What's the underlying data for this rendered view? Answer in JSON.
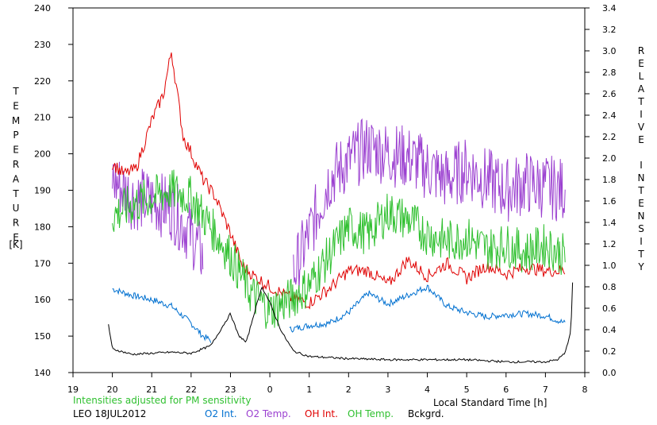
{
  "chart_data": {
    "type": "line",
    "title": "",
    "station_date": "LEO 18JUL2012",
    "note": "Intensities adjusted for PM sensitivity",
    "xlabel": "Local Standard Time [h]",
    "ylabel_left_letters": [
      "T",
      "E",
      "M",
      "P",
      "E",
      "R",
      "A",
      "T",
      "U",
      "R",
      "E"
    ],
    "ylabel_left_unit": "[K]",
    "ylabel_right_letters": [
      "R",
      "E",
      "L",
      "A",
      "T",
      "I",
      "V",
      "E",
      "",
      "I",
      "N",
      "T",
      "E",
      "N",
      "S",
      "I",
      "T",
      "Y"
    ],
    "x_ticks": [
      "19",
      "20",
      "21",
      "22",
      "23",
      "0",
      "1",
      "2",
      "3",
      "4",
      "5",
      "6",
      "7",
      "8"
    ],
    "xlim": [
      19,
      32
    ],
    "ylim_left": [
      140,
      240
    ],
    "y_ticks_left": [
      "140",
      "150",
      "160",
      "170",
      "180",
      "190",
      "200",
      "210",
      "220",
      "230",
      "240"
    ],
    "ylim_right": [
      0,
      3.4
    ],
    "y_ticks_right": [
      "0.0",
      "0.2",
      "0.4",
      "0.6",
      "0.8",
      "1.0",
      "1.2",
      "1.4",
      "1.6",
      "1.8",
      "2.0",
      "2.2",
      "2.4",
      "2.6",
      "2.8",
      "3.0",
      "3.2",
      "3.4"
    ],
    "grid": false,
    "legend_position": "bottom",
    "colors": {
      "o2_int": "#0070d0",
      "o2_temp": "#9b40d0",
      "oh_int": "#e00000",
      "oh_temp": "#30c030",
      "bckgrd": "#000000",
      "note": "#30c030"
    },
    "series": [
      {
        "name": "O2 Int.",
        "axis": "right",
        "key": "o2_int",
        "x": [
          20.0,
          20.5,
          21.0,
          21.5,
          22.0,
          22.3,
          22.5
        ],
        "y": [
          0.78,
          0.72,
          0.68,
          0.62,
          0.46,
          0.34,
          0.3
        ],
        "x2": [
          24.5,
          25.0,
          25.5,
          26.0,
          26.5,
          27.0,
          27.5,
          28.0,
          28.5,
          29.0,
          29.5,
          30.0,
          30.5,
          31.0,
          31.5
        ],
        "y2": [
          0.4,
          0.44,
          0.46,
          0.56,
          0.74,
          0.64,
          0.72,
          0.8,
          0.62,
          0.56,
          0.52,
          0.54,
          0.55,
          0.53,
          0.46
        ]
      },
      {
        "name": "O2 Temp.",
        "axis": "left",
        "key": "o2_temp",
        "x": [
          20.0,
          20.5,
          21.0,
          21.5,
          22.0,
          22.3
        ],
        "y": [
          193,
          188,
          187,
          185,
          178,
          172
        ],
        "x2": [
          24.6,
          25.0,
          25.5,
          26.0,
          26.5,
          27.0,
          27.5,
          28.0,
          28.5,
          29.0,
          29.5,
          30.0,
          30.5,
          31.0,
          31.5
        ],
        "y2": [
          167,
          178,
          193,
          198,
          202,
          200,
          199,
          196,
          193,
          196,
          193,
          190,
          192,
          191,
          190
        ]
      },
      {
        "name": "OH Int.",
        "axis": "right",
        "key": "oh_int",
        "x": [
          20.0,
          20.3,
          20.6,
          21.0,
          21.3,
          21.5,
          21.8,
          22.0,
          22.3,
          22.6,
          23.0,
          23.3,
          23.6,
          24.0,
          24.5,
          25.0,
          25.5,
          26.0,
          26.5,
          27.0,
          27.5,
          28.0,
          28.5,
          29.0,
          29.5,
          30.0,
          30.5,
          31.0,
          31.5
        ],
        "y": [
          1.95,
          1.85,
          1.9,
          2.35,
          2.6,
          3.0,
          2.2,
          2.05,
          1.8,
          1.65,
          1.3,
          1.0,
          0.9,
          0.8,
          0.7,
          0.65,
          0.78,
          0.95,
          0.95,
          0.82,
          1.05,
          0.9,
          1.02,
          0.88,
          1.0,
          0.92,
          0.98,
          0.95,
          0.95
        ]
      },
      {
        "name": "OH Temp.",
        "axis": "left",
        "key": "oh_temp",
        "x": [
          20.0,
          20.5,
          21.0,
          21.5,
          22.0,
          22.5,
          23.0,
          23.5,
          24.0,
          24.5,
          25.0,
          25.5,
          26.0,
          26.5,
          27.0,
          27.5,
          28.0,
          28.5,
          29.0,
          29.5,
          30.0,
          30.5,
          31.0,
          31.5
        ],
        "y": [
          183,
          186,
          188,
          190,
          188,
          180,
          172,
          162,
          157,
          160,
          164,
          172,
          180,
          178,
          184,
          182,
          178,
          176,
          177,
          174,
          175,
          173,
          175,
          172
        ]
      },
      {
        "name": "Bckgrd.",
        "axis": "right",
        "key": "bckgrd",
        "x": [
          19.9,
          20.0,
          20.5,
          21.0,
          21.5,
          22.0,
          22.5,
          23.0,
          23.2,
          23.4,
          23.6,
          23.8,
          24.0,
          24.3,
          24.6,
          25.0,
          25.5,
          26.0,
          27.0,
          28.0,
          29.0,
          30.0,
          31.0,
          31.3,
          31.5,
          31.65,
          31.7
        ],
        "y": [
          0.45,
          0.22,
          0.17,
          0.18,
          0.19,
          0.18,
          0.25,
          0.55,
          0.35,
          0.28,
          0.55,
          0.8,
          0.65,
          0.38,
          0.2,
          0.15,
          0.14,
          0.13,
          0.12,
          0.12,
          0.12,
          0.1,
          0.1,
          0.12,
          0.18,
          0.4,
          0.95
        ]
      }
    ]
  }
}
